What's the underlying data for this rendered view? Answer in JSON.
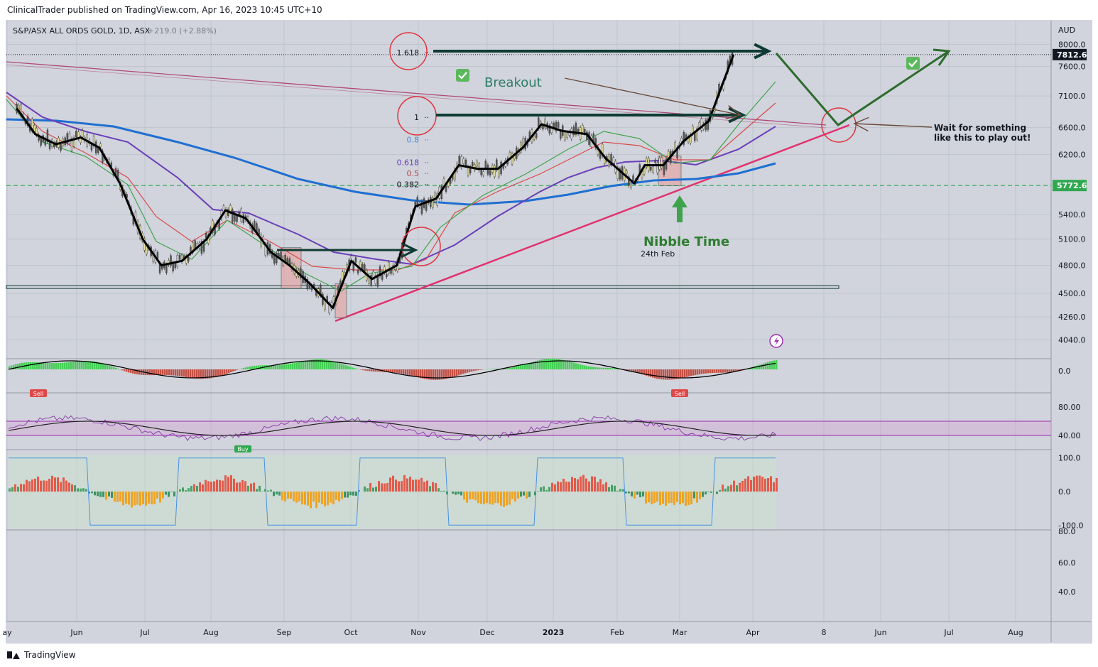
{
  "publisher_line": "ClinicalTrader published on TradingView.com, Apr 16, 2023 10:45 UTC+10",
  "footer": {
    "brand": "TradingView"
  },
  "symbol": {
    "title": "S&P/ASX ALL ORDS GOLD, 1D, ASX",
    "change": "+219.0 (+2.88%)"
  },
  "currency": "AUD",
  "colors": {
    "bg": "#d1d4dc",
    "grid": "#bfc3cc",
    "line_black": "#000000",
    "green_line": "#3fa34d",
    "red_line": "#d84a4a",
    "purple_line": "#6b3fb8",
    "blue_line": "#1f6fd1",
    "arrow_dark": "#0e3b32",
    "arrow_green": "#2e6b2e",
    "trend_pink": "#e0336f",
    "resistance": "#b04a7a",
    "label_bg": "#131722"
  },
  "chart_data": [
    {
      "type": "line",
      "title": "S&P/ASX ALL ORDS GOLD, 1D, ASX",
      "ylabel": "AUD",
      "y_scale": "log",
      "ylim": [
        3900,
        8300
      ],
      "y_ticks": [
        "8000.0",
        "7600.0",
        "7100.0",
        "6600.0",
        "6200.0",
        "5400.0",
        "5100.0",
        "4800.0",
        "4500.0",
        "4260.0",
        "4040.0"
      ],
      "x_ticks": [
        "ay",
        "Jun",
        "Jul",
        "Aug",
        "Sep",
        "Oct",
        "Nov",
        "Dec",
        "2023",
        "Feb",
        "Mar",
        "Apr",
        "8",
        "Jun",
        "Jul",
        "Aug"
      ],
      "price_labels": [
        "7812.6",
        "5772.6"
      ],
      "fib_levels": [
        {
          "label": "1.618",
          "value": 7850
        },
        {
          "label": "1",
          "value": 6760
        },
        {
          "label": "0.8",
          "value": 6420
        },
        {
          "label": "0.618",
          "value": 6090
        },
        {
          "label": "0.5",
          "value": 5940
        },
        {
          "label": "0.382",
          "value": 5790
        }
      ],
      "series": [
        {
          "name": "",
          "x": [
            "2022-05-01",
            "2022-05-10",
            "2022-05-20",
            "2022-06-01",
            "2022-06-10",
            "2022-06-20",
            "2022-07-01",
            "2022-07-10",
            "2022-07-20",
            "2022-08-01",
            "2022-08-10",
            "2022-08-20",
            "2022-09-01",
            "2022-09-10",
            "2022-09-20",
            "2022-10-01",
            "2022-10-10",
            "2022-10-20",
            "2022-11-01",
            "2022-11-10",
            "2022-11-20",
            "2022-12-01",
            "2022-12-10",
            "2022-12-20",
            "2023-01-01",
            "2023-01-10",
            "2023-01-20",
            "2023-02-01",
            "2023-02-10",
            "2023-02-24",
            "2023-03-01",
            "2023-03-10",
            "2023-03-20",
            "2023-04-01",
            "2023-04-13"
          ],
          "y": [
            6900,
            6500,
            6350,
            6450,
            6300,
            5800,
            5100,
            4800,
            4850,
            5100,
            5450,
            5350,
            4950,
            4800,
            4600,
            4350,
            4850,
            4650,
            4800,
            5500,
            5600,
            6050,
            6000,
            6000,
            6300,
            6650,
            6550,
            6500,
            6150,
            5800,
            6050,
            6050,
            6400,
            6700,
            7810
          ]
        }
      ],
      "annotations": [
        "Breakout",
        "Nibble Time",
        "24th Feb",
        "Wait for something like this to play out!"
      ]
    },
    {
      "type": "bar",
      "title": "",
      "y_ticks": [
        "0.0"
      ],
      "labels": [
        "Sell",
        "Sell"
      ]
    },
    {
      "type": "line",
      "title": "",
      "ylim": [
        20,
        100
      ],
      "y_ticks": [
        "80.00",
        "40.00"
      ],
      "labels": [
        "Buy"
      ]
    },
    {
      "type": "bar",
      "title": "",
      "ylim": [
        -110,
        110
      ],
      "y_ticks": [
        "100.0",
        "0.0",
        "-100.0"
      ]
    },
    {
      "type": "line",
      "title": "",
      "y_ticks": [
        "80.0",
        "60.0",
        "40.0"
      ]
    }
  ]
}
